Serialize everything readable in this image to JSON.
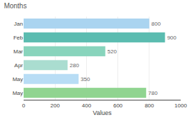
{
  "chart_data": {
    "type": "bar",
    "orientation": "horizontal",
    "title": "Months",
    "xlabel": "Values",
    "categories": [
      "Jan",
      "Feb",
      "Mar",
      "Apr",
      "May",
      "May"
    ],
    "values": [
      800,
      900,
      520,
      280,
      350,
      780
    ],
    "colors": [
      "#aad4f0",
      "#5bbcb0",
      "#88d4bc",
      "#aaddd0",
      "#b8ddf5",
      "#90d490"
    ],
    "xlim": [
      0,
      1000
    ],
    "xticks": [
      0,
      200,
      400,
      600,
      800,
      1000
    ],
    "grid": true,
    "data_labels": true
  }
}
